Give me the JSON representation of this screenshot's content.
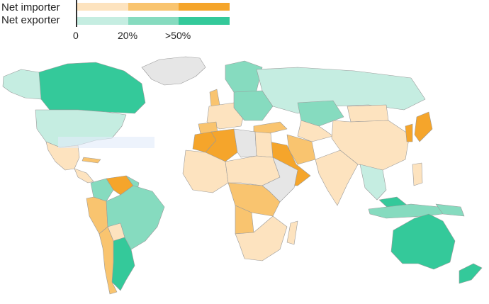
{
  "legend": {
    "importer_label": "Net importer",
    "exporter_label": "Net exporter",
    "ticks": [
      "0",
      "20%",
      ">50%"
    ],
    "importer_colors": [
      "#fde3bf",
      "#f9c46f",
      "#f5a52b"
    ],
    "exporter_colors": [
      "#c5ede1",
      "#86dbbf",
      "#34c99a"
    ]
  },
  "palette": {
    "no_data": "#e6e6e6",
    "border": "#9a9a9a"
  }
}
